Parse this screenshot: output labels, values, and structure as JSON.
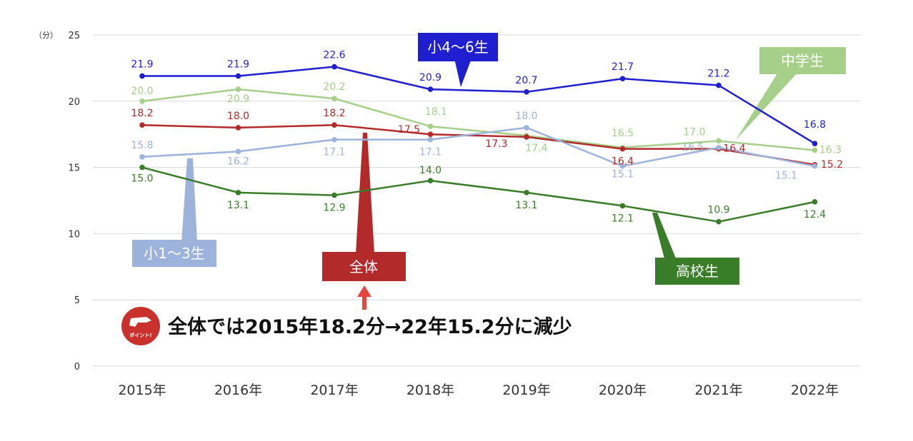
{
  "chart_data": {
    "type": "line",
    "y_unit": "（分）",
    "ylim": [
      0,
      25
    ],
    "y_ticks": [
      0,
      5,
      10,
      15,
      20,
      25
    ],
    "categories": [
      "2015年",
      "2016年",
      "2017年",
      "2018年",
      "2019年",
      "2020年",
      "2021年",
      "2022年"
    ],
    "grid": true,
    "series": [
      {
        "name": "小4～6生",
        "color": "#1f1fcf",
        "values": [
          21.9,
          21.9,
          22.6,
          20.9,
          20.7,
          21.7,
          21.2,
          16.8
        ],
        "labels": [
          "21.9",
          "21.9",
          "22.6",
          "20.9",
          "20.7",
          "21.7",
          "21.2",
          "16.8"
        ]
      },
      {
        "name": "中学生",
        "color": "#a6cf8a",
        "values": [
          20.0,
          20.9,
          20.2,
          18.1,
          17.4,
          16.5,
          17.0,
          16.3
        ],
        "labels": [
          "20.0",
          "20.9",
          "20.2",
          "18.1",
          "17.4",
          "16.5",
          "17.0",
          "16.3"
        ]
      },
      {
        "name": "全体",
        "color": "#b32a2a",
        "values": [
          18.2,
          18.0,
          18.2,
          17.5,
          17.3,
          16.4,
          16.4,
          15.2
        ],
        "labels": [
          "18.2",
          "18.0",
          "18.2",
          "17.5",
          "17.3",
          "16.4",
          "16.4",
          "15.2"
        ]
      },
      {
        "name": "小1～3生",
        "color": "#9db3dc",
        "values": [
          15.8,
          16.2,
          17.1,
          17.1,
          18.0,
          15.1,
          16.5,
          15.1
        ],
        "labels": [
          "15.8",
          "16.2",
          "17.1",
          "17.1",
          "18.0",
          "15.1",
          "16.5",
          "15.1"
        ]
      },
      {
        "name": "高校生",
        "color": "#3a7d28",
        "values": [
          15.0,
          13.1,
          12.9,
          14.0,
          13.1,
          12.1,
          10.9,
          12.4
        ],
        "labels": [
          "15.0",
          "13.1",
          "12.9",
          "14.0",
          "13.1",
          "12.1",
          "10.9",
          "12.4"
        ]
      }
    ],
    "annotation": {
      "badge_text": "ポイント!",
      "text": "全体では2015年18.2分→22年15.2分に減少"
    }
  }
}
